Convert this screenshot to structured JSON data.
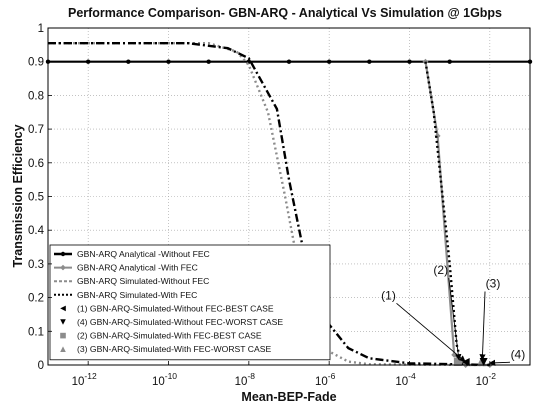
{
  "chart_data": {
    "type": "line",
    "title": "Performance Comparison- GBN-ARQ - Analytical Vs Simulation @ 1Gbps",
    "xlabel": "Mean-BEP-Fade",
    "ylabel": "Transmission Efficiency",
    "x_scale": "log",
    "xlim": [
      1e-13,
      0.1
    ],
    "ylim": [
      0,
      1
    ],
    "grid": true,
    "legend_position": "bottom-left",
    "xticks": [
      {
        "value": 1e-12,
        "base": "10",
        "exp": "-12"
      },
      {
        "value": 1e-10,
        "base": "10",
        "exp": "-10"
      },
      {
        "value": 1e-08,
        "base": "10",
        "exp": "-8"
      },
      {
        "value": 1e-06,
        "base": "10",
        "exp": "-6"
      },
      {
        "value": 0.0001,
        "base": "10",
        "exp": "-4"
      },
      {
        "value": 0.01,
        "base": "10",
        "exp": "-2"
      }
    ],
    "yticks": [
      "0",
      "0.1",
      "0.2",
      "0.3",
      "0.4",
      "0.5",
      "0.6",
      "0.7",
      "0.8",
      "0.9",
      "1"
    ],
    "series": [
      {
        "name": "GBN-ARQ Analytical -Without FEC",
        "color": "#000000",
        "dash": "solid",
        "marker": "dot",
        "points": [
          [
            1e-13,
            0.9
          ],
          [
            1e-12,
            0.9
          ],
          [
            1e-11,
            0.9
          ],
          [
            1e-10,
            0.9
          ],
          [
            1e-09,
            0.9
          ],
          [
            1e-08,
            0.9
          ],
          [
            1e-07,
            0.9
          ],
          [
            1e-06,
            0.9
          ],
          [
            1e-05,
            0.9
          ],
          [
            0.0001,
            0.9
          ],
          [
            0.001,
            0.9
          ],
          [
            0.1,
            0.9
          ]
        ]
      },
      {
        "name": "GBN-ARQ Analytical -With FEC",
        "color": "#8c8c8c",
        "dash": "solid",
        "marker": "diamond",
        "points": [
          [
            0.00025,
            0.9
          ],
          [
            0.0005,
            0.68
          ],
          [
            0.0013,
            0.03
          ],
          [
            0.0025,
            0.0
          ],
          [
            0.01,
            0.0
          ]
        ]
      },
      {
        "name": "GBN-ARQ Simulated-Without FEC",
        "color": "#8c8c8c",
        "dash": "dot",
        "marker": "none",
        "points": [
          [
            1e-13,
            0.955
          ],
          [
            1e-09,
            0.955
          ],
          [
            5e-09,
            0.93
          ],
          [
            1e-08,
            0.89
          ],
          [
            3e-08,
            0.75
          ],
          [
            8e-08,
            0.5
          ],
          [
            2e-07,
            0.25
          ],
          [
            5e-07,
            0.09
          ],
          [
            1e-06,
            0.04
          ],
          [
            3e-06,
            0.01
          ],
          [
            1e-05,
            0.002
          ],
          [
            0.01,
            0.0
          ]
        ]
      },
      {
        "name": "GBN-ARQ Simulated-With FEC",
        "color": "#000000",
        "dash": "dot",
        "marker": "none",
        "points": [
          [
            0.00025,
            0.9
          ],
          [
            0.0004,
            0.75
          ],
          [
            0.0006,
            0.55
          ],
          [
            0.001,
            0.3
          ],
          [
            0.0015,
            0.06
          ],
          [
            0.002,
            0.0
          ]
        ]
      },
      {
        "name": "GBN-ARQ Simulated-Without FEC (dash-dot)",
        "color": "#000000",
        "dash": "dashdot",
        "marker": "none",
        "points": [
          [
            1e-13,
            0.955
          ],
          [
            3e-10,
            0.955
          ],
          [
            3e-09,
            0.94
          ],
          [
            1e-08,
            0.91
          ],
          [
            5e-08,
            0.76
          ],
          [
            1e-07,
            0.55
          ],
          [
            3e-07,
            0.27
          ],
          [
            1e-06,
            0.12
          ],
          [
            3e-06,
            0.05
          ],
          [
            1e-05,
            0.02
          ],
          [
            0.0001,
            0.005
          ],
          [
            0.01,
            0.0
          ]
        ]
      }
    ],
    "legend": [
      {
        "label": "GBN-ARQ Analytical -Without FEC",
        "color": "#000000",
        "line": "solid-thick",
        "marker": "dot"
      },
      {
        "label": "GBN-ARQ Analytical -With FEC",
        "color": "#8c8c8c",
        "line": "solid",
        "marker": "diamond"
      },
      {
        "label": "GBN-ARQ Simulated-Without FEC",
        "color": "#8c8c8c",
        "line": "dash",
        "marker": "none"
      },
      {
        "label": "GBN-ARQ Simulated-With FEC",
        "color": "#000000",
        "line": "dot",
        "marker": "none"
      },
      {
        "label": "(1) GBN-ARQ-Simulated-Without FEC-BEST CASE",
        "color": "#000000",
        "line": "none",
        "marker": "tri-left"
      },
      {
        "label": "(4) GBN-ARQ-Simulated-Without FEC-WORST CASE",
        "color": "#000000",
        "line": "none",
        "marker": "tri-down"
      },
      {
        "label": "(2) GBN-ARQ-Simulated-With FEC-BEST CASE",
        "color": "#8c8c8c",
        "line": "none",
        "marker": "square"
      },
      {
        "label": "(3) GBN-ARQ-Simulated-With FEC-WORST CASE",
        "color": "#8c8c8c",
        "line": "none",
        "marker": "tri-up"
      }
    ],
    "case_points": [
      {
        "label": "(1)",
        "color": "#000000",
        "marker": "tri-left",
        "x": 0.0025,
        "y": 0.0
      },
      {
        "label": "(2)",
        "color": "#8c8c8c",
        "marker": "square",
        "x": 0.0016,
        "y": 0.0
      },
      {
        "label": "(3)",
        "color": "#8c8c8c",
        "marker": "tri-up",
        "x": 0.006,
        "y": 0.0
      },
      {
        "label": "(4)",
        "color": "#000000",
        "marker": "tri-down",
        "x": 0.007,
        "y": 0.0
      }
    ],
    "annotations": [
      {
        "text": "(1)",
        "tx": 3e-05,
        "ty": 0.195,
        "ax": 0.0024,
        "ay": 0.005
      },
      {
        "text": "(2)",
        "tx": 0.0006,
        "ty": 0.27,
        "ax": 0.0017,
        "ay": 0.01
      },
      {
        "text": "(3)",
        "tx": 0.012,
        "ty": 0.23,
        "ax": 0.0065,
        "ay": 0.01
      },
      {
        "text": "(4)",
        "tx": 0.05,
        "ty": 0.02,
        "ax": 0.01,
        "ay": 0.0
      }
    ]
  }
}
